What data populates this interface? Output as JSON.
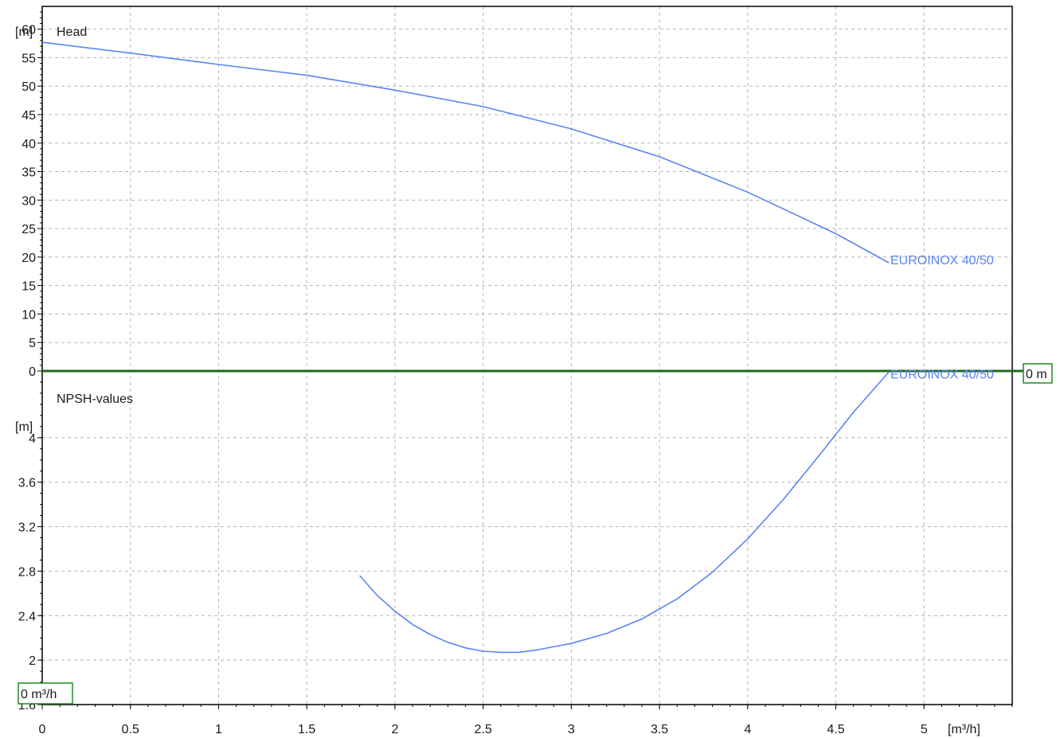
{
  "colors": {
    "curve": "#5b84f4",
    "zero_line": "#1e6b1e",
    "marker_border": "#1f8a1f",
    "grid": "#b4b4b4"
  },
  "chart_data": [
    {
      "type": "line",
      "title": "Head",
      "ylabel": "[m]",
      "xlim": [
        0,
        5.5
      ],
      "ylim": [
        0,
        64
      ],
      "x_ticks": [
        "0",
        "0.5",
        "1",
        "1.5",
        "2",
        "2.5",
        "3",
        "3.5",
        "4",
        "4.5",
        "5"
      ],
      "y_ticks": [
        "0",
        "5",
        "10",
        "15",
        "20",
        "25",
        "30",
        "35",
        "40",
        "45",
        "50",
        "55",
        "60"
      ],
      "grid": true,
      "zero_marker": "0 m",
      "series": [
        {
          "name": "EUROINOX 40/50",
          "x": [
            0,
            0.5,
            1,
            1.5,
            2,
            2.5,
            3,
            3.5,
            4,
            4.5,
            4.8
          ],
          "y": [
            57.7,
            55.8,
            53.8,
            51.9,
            49.3,
            46.4,
            42.5,
            37.6,
            31.4,
            24.1,
            19.0
          ]
        }
      ]
    },
    {
      "type": "line",
      "title": "NPSH-values",
      "ylabel": "[m]",
      "xlabel": "[m³/h]",
      "xlim": [
        0,
        5.5
      ],
      "ylim": [
        1.6,
        4.6
      ],
      "x_ticks": [
        "0",
        "0.5",
        "1",
        "1.5",
        "2",
        "2.5",
        "3",
        "3.5",
        "4",
        "4.5",
        "5"
      ],
      "y_ticks": [
        "1.6",
        "2",
        "2.4",
        "2.8",
        "3.2",
        "3.6",
        "4"
      ],
      "grid": true,
      "zero_marker": "0 m³/h",
      "series": [
        {
          "name": "EUROINOX 40/50",
          "x": [
            1.8,
            1.9,
            2.0,
            2.1,
            2.2,
            2.3,
            2.4,
            2.5,
            2.6,
            2.7,
            2.8,
            2.9,
            3.0,
            3.2,
            3.4,
            3.6,
            3.8,
            4.0,
            4.2,
            4.4,
            4.6,
            4.8
          ],
          "y": [
            2.76,
            2.58,
            2.44,
            2.32,
            2.23,
            2.16,
            2.11,
            2.08,
            2.07,
            2.07,
            2.09,
            2.12,
            2.15,
            2.24,
            2.37,
            2.55,
            2.79,
            3.09,
            3.44,
            3.83,
            4.23,
            4.59
          ]
        }
      ]
    }
  ]
}
